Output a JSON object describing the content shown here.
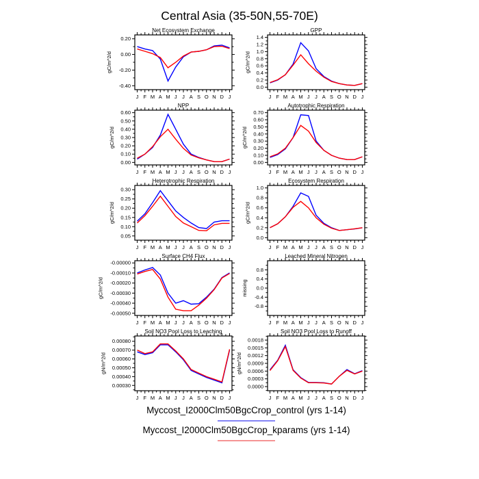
{
  "title": "Central Asia (35-50N,55-70E)",
  "x_labels": [
    "J",
    "F",
    "M",
    "A",
    "M",
    "J",
    "J",
    "A",
    "S",
    "O",
    "N",
    "D",
    "J"
  ],
  "series_colors": [
    "#0000ff",
    "#ff0000"
  ],
  "legend": [
    {
      "label": "Myccost_I2000Clm50BgcCrop_control (yrs 1-14)",
      "underline_color": "#8484f5"
    },
    {
      "label": "Myccost_I2000Clm50BgcCrop_kparams (yrs 1-14)",
      "underline_color": "#f59494"
    }
  ],
  "chart_data": [
    {
      "type": "line",
      "title": "Net Ecosystem Exchange",
      "ylabel": "gC/m^2/d",
      "xlabel": "",
      "yticks": [
        0.2,
        0.0,
        -0.2,
        -0.4
      ],
      "ytick_labels": [
        "0.20",
        "0.00",
        "-0.20",
        "-0.40"
      ],
      "ylim": [
        -0.45,
        0.25
      ],
      "series": [
        {
          "name": "Myccost_I2000Clm50BgcCrop_control (yrs 1-14)",
          "values": [
            0.1,
            0.07,
            0.05,
            -0.06,
            -0.34,
            -0.16,
            -0.03,
            0.03,
            0.04,
            0.06,
            0.11,
            0.12,
            0.085
          ]
        },
        {
          "name": "Myccost_I2000Clm50BgcCrop_kparams (yrs 1-14)",
          "values": [
            0.07,
            0.04,
            0.01,
            -0.04,
            -0.17,
            -0.1,
            -0.02,
            0.03,
            0.04,
            0.06,
            0.1,
            0.105,
            0.075
          ]
        }
      ]
    },
    {
      "type": "line",
      "title": "GPP",
      "ylabel": "gC/m^2/d",
      "xlabel": "",
      "yticks": [
        1.4,
        1.2,
        1.0,
        0.8,
        0.6,
        0.4,
        0.2,
        0.0
      ],
      "ytick_labels": [
        "1.4",
        "1.2",
        "1.0",
        "0.8",
        "0.6",
        "0.4",
        "0.2",
        "0.0"
      ],
      "ylim": [
        -0.07,
        1.47
      ],
      "series": [
        {
          "name": "Myccost_I2000Clm50BgcCrop_control (yrs 1-14)",
          "values": [
            0.12,
            0.2,
            0.35,
            0.65,
            1.25,
            1.02,
            0.52,
            0.3,
            0.17,
            0.1,
            0.06,
            0.05,
            0.1
          ]
        },
        {
          "name": "Myccost_I2000Clm50BgcCrop_kparams (yrs 1-14)",
          "values": [
            0.13,
            0.21,
            0.35,
            0.62,
            0.91,
            0.66,
            0.45,
            0.28,
            0.16,
            0.1,
            0.06,
            0.05,
            0.1
          ]
        }
      ]
    },
    {
      "type": "line",
      "title": "NPP",
      "ylabel": "gC/m^2/d",
      "xlabel": "",
      "yticks": [
        0.6,
        0.5,
        0.4,
        0.3,
        0.2,
        0.1,
        0.0
      ],
      "ytick_labels": [
        "0.60",
        "0.50",
        "0.40",
        "0.30",
        "0.20",
        "0.10",
        "0.00"
      ],
      "ylim": [
        -0.03,
        0.63
      ],
      "series": [
        {
          "name": "Myccost_I2000Clm50BgcCrop_control (yrs 1-14)",
          "values": [
            0.04,
            0.1,
            0.18,
            0.33,
            0.58,
            0.4,
            0.22,
            0.1,
            0.06,
            0.03,
            0.01,
            0.01,
            0.04
          ]
        },
        {
          "name": "Myccost_I2000Clm50BgcCrop_kparams (yrs 1-14)",
          "values": [
            0.05,
            0.1,
            0.19,
            0.31,
            0.4,
            0.28,
            0.17,
            0.09,
            0.055,
            0.03,
            0.01,
            0.01,
            0.04
          ]
        }
      ]
    },
    {
      "type": "line",
      "title": "Autotrophic Respiration",
      "ylabel": "gC/m^2/d",
      "xlabel": "",
      "yticks": [
        0.7,
        0.6,
        0.5,
        0.4,
        0.3,
        0.2,
        0.1,
        0.0
      ],
      "ytick_labels": [
        "0.70",
        "0.60",
        "0.50",
        "0.40",
        "0.30",
        "0.20",
        "0.10",
        "0.00"
      ],
      "ylim": [
        -0.035,
        0.735
      ],
      "series": [
        {
          "name": "Myccost_I2000Clm50BgcCrop_control (yrs 1-14)",
          "values": [
            0.07,
            0.11,
            0.19,
            0.35,
            0.67,
            0.66,
            0.3,
            0.17,
            0.1,
            0.06,
            0.04,
            0.04,
            0.08
          ]
        },
        {
          "name": "Myccost_I2000Clm50BgcCrop_kparams (yrs 1-14)",
          "values": [
            0.08,
            0.12,
            0.2,
            0.35,
            0.52,
            0.44,
            0.28,
            0.17,
            0.1,
            0.06,
            0.04,
            0.04,
            0.08
          ]
        }
      ]
    },
    {
      "type": "line",
      "title": "Heterotrophic Respiration",
      "ylabel": "gC/m^2/d",
      "xlabel": "",
      "yticks": [
        0.3,
        0.25,
        0.2,
        0.15,
        0.1,
        0.05
      ],
      "ytick_labels": [
        "0.30",
        "0.25",
        "0.20",
        "0.15",
        "0.10",
        "0.05"
      ],
      "ylim": [
        0.027,
        0.323
      ],
      "series": [
        {
          "name": "Myccost_I2000Clm50BgcCrop_control (yrs 1-14)",
          "values": [
            0.13,
            0.17,
            0.23,
            0.295,
            0.24,
            0.185,
            0.15,
            0.12,
            0.095,
            0.09,
            0.125,
            0.132,
            0.132
          ]
        },
        {
          "name": "Myccost_I2000Clm50BgcCrop_kparams (yrs 1-14)",
          "values": [
            0.12,
            0.16,
            0.21,
            0.265,
            0.21,
            0.155,
            0.12,
            0.1,
            0.08,
            0.078,
            0.11,
            0.118,
            0.118
          ]
        }
      ]
    },
    {
      "type": "line",
      "title": "Ecosystem Respiration",
      "ylabel": "gC/m^2/d",
      "xlabel": "",
      "yticks": [
        1.0,
        0.8,
        0.6,
        0.4,
        0.2,
        0.0
      ],
      "ytick_labels": [
        "1.0",
        "0.8",
        "0.6",
        "0.4",
        "0.2",
        "0.0"
      ],
      "ylim": [
        -0.05,
        1.05
      ],
      "series": [
        {
          "name": "Myccost_I2000Clm50BgcCrop_control (yrs 1-14)",
          "values": [
            0.2,
            0.28,
            0.42,
            0.63,
            0.9,
            0.83,
            0.45,
            0.29,
            0.2,
            0.145,
            0.16,
            0.175,
            0.2
          ]
        },
        {
          "name": "Myccost_I2000Clm50BgcCrop_kparams (yrs 1-14)",
          "values": [
            0.2,
            0.28,
            0.42,
            0.61,
            0.73,
            0.6,
            0.4,
            0.27,
            0.19,
            0.145,
            0.16,
            0.18,
            0.2
          ]
        }
      ]
    },
    {
      "type": "line",
      "title": "Surface CH4 Flux",
      "ylabel": "gC/m^2/d",
      "xlabel": "",
      "yticks": [
        0.0,
        -0.0001,
        -0.0002,
        -0.0003,
        -0.0004,
        -0.0005
      ],
      "ytick_labels": [
        "-0.00000",
        "-0.00010",
        "-0.00020",
        "-0.00030",
        "-0.00040",
        "-0.00050"
      ],
      "ylim": [
        -0.000522,
        2.2e-05
      ],
      "series": [
        {
          "name": "Myccost_I2000Clm50BgcCrop_control (yrs 1-14)",
          "values": [
            -0.0001,
            -7e-05,
            -4.5e-05,
            -0.00012,
            -0.0003,
            -0.0004,
            -0.000375,
            -0.00041,
            -0.000405,
            -0.00034,
            -0.00026,
            -0.000145,
            -0.0001
          ]
        },
        {
          "name": "Myccost_I2000Clm50BgcCrop_kparams (yrs 1-14)",
          "values": [
            -0.00011,
            -8.5e-05,
            -6.5e-05,
            -0.00016,
            -0.00034,
            -0.00046,
            -0.000475,
            -0.000475,
            -0.00042,
            -0.00035,
            -0.000265,
            -0.00015,
            -0.000105
          ]
        }
      ]
    },
    {
      "type": "line",
      "title": "Leached Mineral Nitrogen",
      "ylabel": "missing",
      "xlabel": "",
      "yticks": [
        0.8,
        0.4,
        0.0,
        -0.4,
        -0.8
      ],
      "ytick_labels": [
        "0.8",
        "0.4",
        "0.0",
        "-0.4",
        "-0.8"
      ],
      "ylim": [
        -1.2,
        1.2
      ],
      "series": []
    },
    {
      "type": "line",
      "title": "Soil NO3 Pool Loss to Leaching",
      "ylabel": "gN/m^2/d",
      "xlabel": "",
      "yticks": [
        0.0008,
        0.0007,
        0.0006,
        0.0005,
        0.0004,
        0.0003
      ],
      "ytick_labels": [
        "0.00080",
        "0.00070",
        "0.00060",
        "0.00050",
        "0.00040",
        "0.00030"
      ],
      "ylim": [
        0.00024,
        0.00086
      ],
      "series": [
        {
          "name": "Myccost_I2000Clm50BgcCrop_control (yrs 1-14)",
          "values": [
            0.00068,
            0.00065,
            0.00067,
            0.00076,
            0.00076,
            0.00068,
            0.00059,
            0.00047,
            0.00043,
            0.00039,
            0.00036,
            0.00033,
            0.0007
          ]
        },
        {
          "name": "Myccost_I2000Clm50BgcCrop_kparams (yrs 1-14)",
          "values": [
            0.0007,
            0.00066,
            0.00068,
            0.00077,
            0.00077,
            0.00069,
            0.0006,
            0.00048,
            0.00044,
            0.0004,
            0.00037,
            0.00034,
            0.00071
          ]
        }
      ]
    },
    {
      "type": "line",
      "title": "Soil NO3 Pool Loss to Runoff",
      "ylabel": "gN/m^2/d",
      "xlabel": "",
      "yticks": [
        0.0018,
        0.0015,
        0.0012,
        0.0009,
        0.0006,
        0.0003,
        0.0
      ],
      "ytick_labels": [
        "0.0018",
        "0.0015",
        "0.0012",
        "0.0009",
        "0.0006",
        "0.0003",
        "0.0000"
      ],
      "ylim": [
        -0.00016,
        0.00196
      ],
      "series": [
        {
          "name": "Myccost_I2000Clm50BgcCrop_control (yrs 1-14)",
          "values": [
            0.00065,
            0.00102,
            0.0016,
            0.00065,
            0.00035,
            0.00016,
            0.00016,
            0.00015,
            0.0001,
            0.0004,
            0.00066,
            0.0005,
            0.00062
          ]
        },
        {
          "name": "Myccost_I2000Clm50BgcCrop_kparams (yrs 1-14)",
          "values": [
            0.00062,
            0.001,
            0.00155,
            0.00063,
            0.00033,
            0.00015,
            0.00015,
            0.00014,
            0.0001,
            0.0004,
            0.00063,
            0.00049,
            0.0006
          ]
        }
      ]
    }
  ]
}
